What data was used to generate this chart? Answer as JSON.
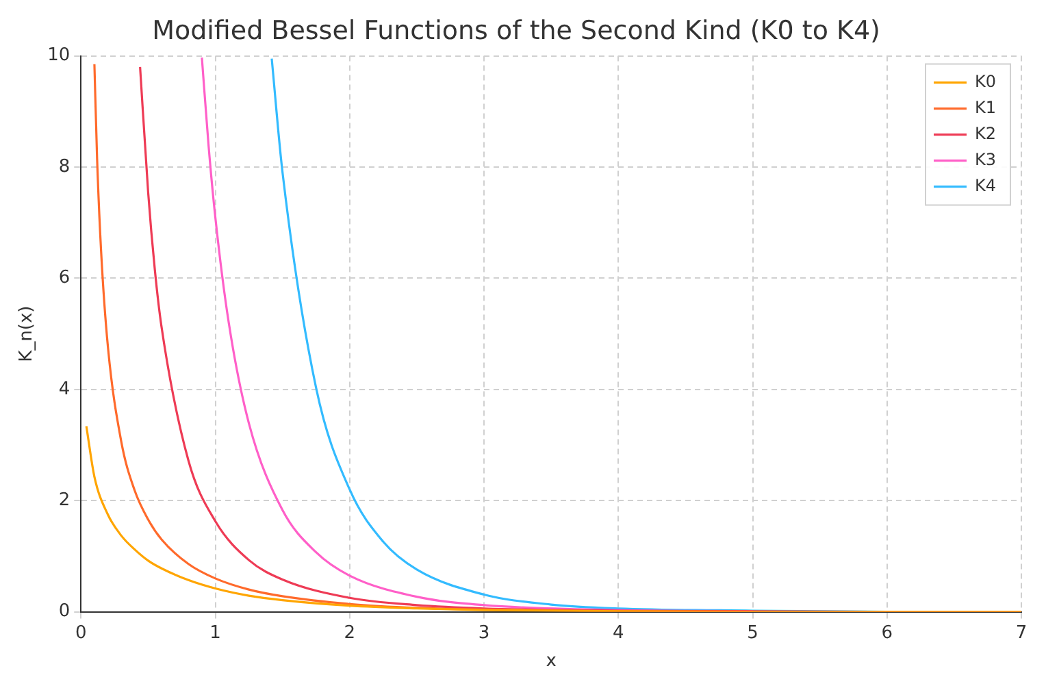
{
  "chart_data": {
    "type": "line",
    "title": "Modified Bessel Functions of the Second Kind (K0 to K4)",
    "xlabel": "x",
    "ylabel": "K_n(x)",
    "xlim": [
      0,
      7
    ],
    "ylim": [
      0,
      10
    ],
    "xticks": [
      0,
      1,
      2,
      3,
      4,
      5,
      6,
      7
    ],
    "yticks": [
      0,
      2,
      4,
      6,
      8,
      10
    ],
    "grid": true,
    "legend": "top right",
    "marker": "none",
    "line_style": "solid",
    "series": [
      {
        "name": "K0",
        "color": "#ffa500",
        "x": [
          0.04,
          0.1,
          0.2,
          0.3,
          0.4,
          0.5,
          0.6,
          0.8,
          1,
          1.25,
          1.5,
          2,
          2.5,
          3,
          4,
          5,
          6,
          7
        ],
        "values": [
          3.34,
          2.43,
          1.75,
          1.37,
          1.12,
          0.92,
          0.78,
          0.57,
          0.42,
          0.29,
          0.21,
          0.11,
          0.06,
          0.03,
          0.01,
          0,
          0,
          0
        ]
      },
      {
        "name": "K1",
        "color": "#ff6a2b",
        "x": [
          0.1,
          0.12,
          0.15,
          0.2,
          0.3,
          0.4,
          0.5,
          0.6,
          0.8,
          1,
          1.25,
          1.5,
          2,
          2.5,
          3,
          4,
          5,
          6,
          7
        ],
        "values": [
          9.85,
          8.15,
          6.48,
          4.78,
          3.06,
          2.18,
          1.66,
          1.3,
          0.86,
          0.6,
          0.4,
          0.28,
          0.14,
          0.07,
          0.04,
          0.01,
          0,
          0,
          0
        ]
      },
      {
        "name": "K2",
        "color": "#ee3b55",
        "x": [
          0.44,
          0.5,
          0.55,
          0.6,
          0.8,
          1,
          1.25,
          1.5,
          2,
          2.5,
          3,
          4,
          5,
          6,
          7
        ],
        "values": [
          9.8,
          7.55,
          6.15,
          5.12,
          2.72,
          1.63,
          0.93,
          0.58,
          0.25,
          0.12,
          0.06,
          0.02,
          0.01,
          0,
          0
        ]
      },
      {
        "name": "K3",
        "color": "#ff5fc8",
        "x": [
          0.9,
          0.95,
          1,
          1.1,
          1.25,
          1.5,
          1.75,
          2,
          2.5,
          3,
          4,
          5
        ],
        "values": [
          9.97,
          8.38,
          7.1,
          5.2,
          3.39,
          1.83,
          1.07,
          0.65,
          0.27,
          0.12,
          0.03,
          0.01
        ]
      },
      {
        "name": "K4",
        "color": "#33bbff",
        "x": [
          1.42,
          1.5,
          1.75,
          2,
          2.25,
          2.5,
          3,
          3.5,
          4,
          5,
          6,
          7
        ],
        "values": [
          9.95,
          7.91,
          4.03,
          2.2,
          1.26,
          0.76,
          0.31,
          0.13,
          0.06,
          0.02,
          0,
          0
        ]
      }
    ]
  }
}
